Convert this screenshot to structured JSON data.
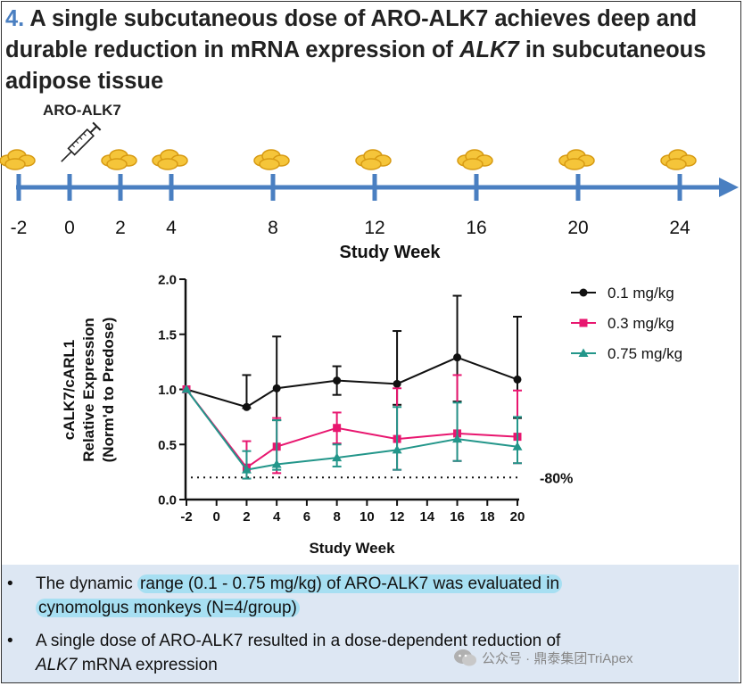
{
  "header": {
    "number": "4.",
    "title_before": "A single subcutaneous dose of ARO-ALK7 achieves deep and durable reduction in mRNA expression of ",
    "title_gene": "ALK7",
    "title_after": " in subcutaneous adipose tissue"
  },
  "timeline": {
    "drug_label": "ARO-ALK7",
    "weeks": [
      "-2",
      "0",
      "2",
      "4",
      "8",
      "12",
      "16",
      "20",
      "24"
    ],
    "biopsy_weeks": [
      -2,
      2,
      4,
      8,
      12,
      16,
      20,
      24
    ],
    "dose_week": 0,
    "axis_label": "Study Week",
    "color": "#4a7fc1",
    "syringe_icon": "syringe-icon",
    "biopsy_icon": "adipose-tissue-icon"
  },
  "chart_data": {
    "type": "line",
    "x": [
      -2,
      2,
      4,
      8,
      12,
      16,
      20
    ],
    "xlabel": "Study Week",
    "ylabel_lines": [
      "cALK7/cARL1",
      "Relative Expression",
      "(Norm'd to Predose)"
    ],
    "xlim": [
      -2,
      20
    ],
    "ylim": [
      0,
      2
    ],
    "xticks": [
      "-2",
      "0",
      "2",
      "4",
      "6",
      "8",
      "10",
      "12",
      "14",
      "16",
      "18",
      "20"
    ],
    "yticks": [
      "0.0",
      "0.5",
      "1.0",
      "1.5",
      "2.0"
    ],
    "reference_line": {
      "y": 0.2,
      "label": "-80%",
      "style": "dotted"
    },
    "legend_position": "top-right",
    "series": [
      {
        "name": "0.1 mg/kg",
        "color": "#111111",
        "marker": "circle",
        "values": [
          1.0,
          0.84,
          1.01,
          1.08,
          1.05,
          1.29,
          1.09
        ],
        "err_hi": [
          1.0,
          1.13,
          1.48,
          1.21,
          1.53,
          1.85,
          1.66
        ],
        "err_lo": [
          1.0,
          0.83,
          0.72,
          0.95,
          0.86,
          0.89,
          0.74
        ]
      },
      {
        "name": "0.3 mg/kg",
        "color": "#e8166f",
        "marker": "square",
        "values": [
          1.0,
          0.29,
          0.48,
          0.65,
          0.55,
          0.6,
          0.57
        ],
        "err_hi": [
          1.0,
          0.53,
          0.74,
          0.79,
          1.01,
          1.13,
          0.99
        ],
        "err_lo": [
          1.0,
          0.19,
          0.24,
          0.51,
          0.27,
          0.35,
          0.33
        ]
      },
      {
        "name": "0.75 mg/kg",
        "color": "#23968a",
        "marker": "triangle",
        "values": [
          1.0,
          0.27,
          0.32,
          0.38,
          0.45,
          0.55,
          0.48
        ],
        "err_hi": [
          1.0,
          0.44,
          0.72,
          0.5,
          0.84,
          0.88,
          0.75
        ],
        "err_lo": [
          1.0,
          0.19,
          0.27,
          0.3,
          0.27,
          0.35,
          0.33
        ]
      }
    ]
  },
  "bullets": [
    {
      "pre": "The dynamic ",
      "hl1": "range (0.1 - 0.75 mg/kg) of ARO-ALK7 was evaluated in",
      "hl2": "cynomolgus monkeys (N=4/group)"
    },
    {
      "line1": "A single dose of ARO-ALK7 resulted in a dose-dependent reduction of",
      "gene": "ALK7",
      "line2_rest": " mRNA expression"
    }
  ],
  "watermark": "公众号 · 鼎泰集团TriApex"
}
